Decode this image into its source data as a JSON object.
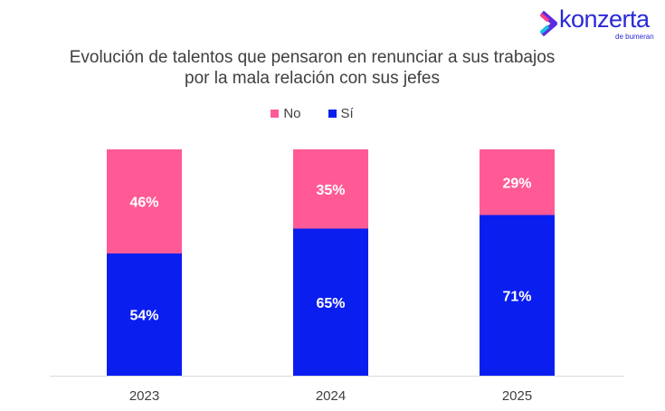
{
  "logo": {
    "name": "konzerta",
    "sub": "de bumeran"
  },
  "chart_data": {
    "type": "bar",
    "stacked": true,
    "title": "Evolución de talentos que pensaron en renunciar a sus trabajos por la mala relación con sus jefes",
    "title_lines": [
      "Evolución de talentos que pensaron en renunciar a sus trabajos",
      "por la mala relación con sus jefes"
    ],
    "categories": [
      "2023",
      "2024",
      "2025"
    ],
    "series": [
      {
        "name": "Sí",
        "color": "#0A1EF0",
        "values": [
          54,
          65,
          71
        ],
        "labels": [
          "54%",
          "65%",
          "71%"
        ]
      },
      {
        "name": "No",
        "color": "#FF5A96",
        "values": [
          46,
          35,
          29
        ],
        "labels": [
          "46%",
          "35%",
          "29%"
        ]
      }
    ],
    "legend": [
      "No",
      "Sí"
    ],
    "legend_position": "top",
    "ylim": [
      0,
      100
    ],
    "xlabel": "",
    "ylabel": "",
    "grid": false
  }
}
